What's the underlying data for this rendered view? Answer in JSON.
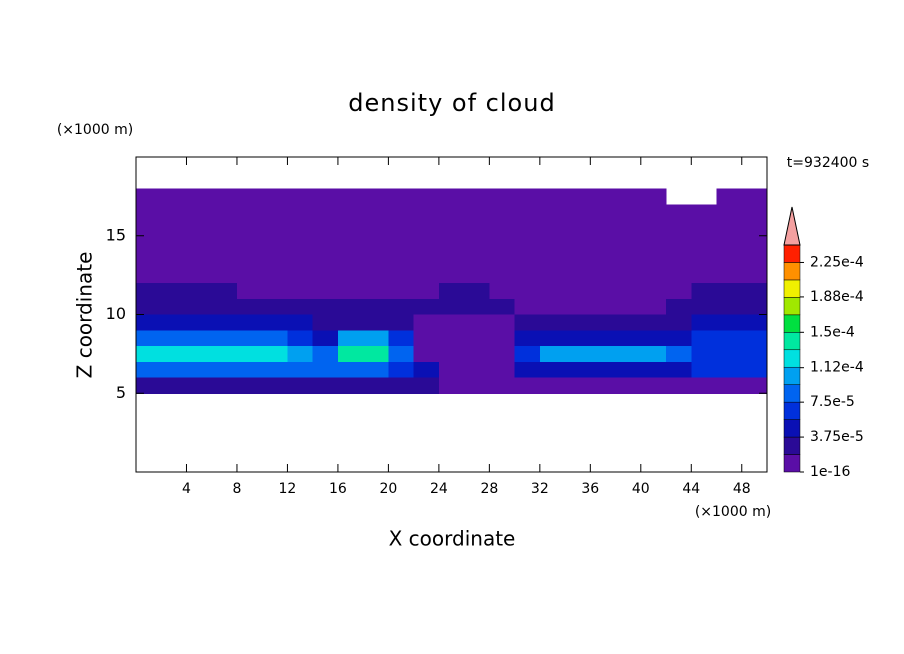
{
  "chart_data": {
    "type": "contour",
    "title": "density of cloud",
    "x_label": "X coordinate",
    "y_label": "Z coordinate",
    "x_unit": "(×1000 m)",
    "y_unit": "(×1000 m)",
    "time_label": "t=932400 s",
    "xlim": [
      0,
      50
    ],
    "ylim": [
      0,
      20
    ],
    "xticks": [
      4,
      8,
      12,
      16,
      20,
      24,
      28,
      32,
      36,
      40,
      44,
      48
    ],
    "yticks": [
      5,
      10,
      15
    ],
    "x": [
      1,
      3,
      5,
      7,
      9,
      11,
      13,
      15,
      17,
      19,
      21,
      23,
      25,
      27,
      29,
      31,
      33,
      35,
      37,
      39,
      41,
      43,
      45,
      47,
      49
    ],
    "y": [
      17.5,
      16.5,
      15.5,
      14.5,
      13.5,
      12.5,
      11.5,
      10.5,
      9.5,
      8.5,
      7.5,
      6.5,
      5.5
    ],
    "z": [
      [
        1e-06,
        1e-06,
        1e-06,
        1e-06,
        1e-06,
        1e-06,
        1e-06,
        1e-06,
        1e-06,
        1e-06,
        1e-06,
        1e-06,
        1e-06,
        1e-06,
        1e-06,
        1e-06,
        1e-06,
        1e-06,
        1e-06,
        1e-06,
        1e-06,
        null,
        null,
        1e-06,
        1e-06
      ],
      [
        1e-06,
        1e-06,
        1e-06,
        1e-06,
        1e-06,
        1e-06,
        1e-06,
        1e-06,
        1e-06,
        1e-06,
        1e-06,
        1e-06,
        1e-06,
        1e-06,
        1e-06,
        1e-06,
        1e-06,
        1e-06,
        1e-06,
        1e-06,
        1e-06,
        1e-06,
        1e-06,
        1e-06,
        1e-06
      ],
      [
        1e-06,
        1e-06,
        1e-06,
        1e-06,
        1e-06,
        1e-06,
        1e-06,
        1e-06,
        1e-06,
        1e-06,
        1e-06,
        1e-06,
        1e-06,
        1e-06,
        1e-06,
        1e-06,
        1e-06,
        1e-06,
        1e-06,
        1e-06,
        1e-06,
        1e-06,
        1e-06,
        1e-06,
        1e-06
      ],
      [
        1e-06,
        1e-06,
        1e-06,
        1e-06,
        1e-06,
        1e-06,
        1e-06,
        1e-06,
        1e-06,
        1e-06,
        1e-06,
        1e-06,
        1e-06,
        1e-06,
        1e-06,
        1e-06,
        1e-06,
        1e-06,
        1e-06,
        1e-06,
        1e-06,
        1e-06,
        1e-06,
        1e-06,
        1e-06
      ],
      [
        1e-06,
        1e-06,
        1e-06,
        1e-06,
        1e-06,
        1e-06,
        1e-06,
        1e-06,
        1e-06,
        1e-06,
        1e-06,
        1e-06,
        1e-06,
        1e-06,
        1e-06,
        1e-06,
        1e-06,
        1e-06,
        1e-06,
        1e-06,
        1e-06,
        1e-06,
        1e-06,
        1e-06,
        1e-06
      ],
      [
        1e-06,
        1e-06,
        1e-06,
        1e-06,
        1e-06,
        1e-06,
        1e-06,
        1e-06,
        1e-06,
        1e-06,
        1e-06,
        1e-06,
        1e-06,
        1e-06,
        1e-06,
        1e-06,
        1e-06,
        1e-06,
        1e-06,
        1e-06,
        1e-06,
        1e-06,
        1e-06,
        1e-06,
        1e-06
      ],
      [
        3e-05,
        3e-05,
        3e-05,
        3e-05,
        1e-06,
        1e-06,
        1e-06,
        1e-06,
        1e-06,
        1e-06,
        1e-06,
        1e-06,
        3e-05,
        3e-05,
        1e-06,
        1e-06,
        1e-06,
        1e-06,
        1e-06,
        1e-06,
        1e-06,
        1e-06,
        3e-05,
        3e-05,
        3e-05
      ],
      [
        3e-05,
        3e-05,
        3e-05,
        3e-05,
        3e-05,
        3e-05,
        3e-05,
        3e-05,
        3e-05,
        3e-05,
        3e-05,
        3e-05,
        3e-05,
        3e-05,
        3e-05,
        1e-06,
        1e-06,
        1e-06,
        1e-06,
        1e-06,
        1e-06,
        3e-05,
        3e-05,
        3e-05,
        3e-05
      ],
      [
        5e-05,
        5e-05,
        5e-05,
        5e-05,
        5e-05,
        5e-05,
        5e-05,
        3e-05,
        3e-05,
        3e-05,
        3e-05,
        1e-06,
        1e-06,
        1e-06,
        1e-06,
        3e-05,
        3e-05,
        3e-05,
        3e-05,
        3e-05,
        3e-05,
        3e-05,
        5e-05,
        5e-05,
        5e-05
      ],
      [
        9e-05,
        9e-05,
        9e-05,
        9e-05,
        9e-05,
        9e-05,
        6e-05,
        5e-05,
        0.00011,
        0.00011,
        6e-05,
        1e-06,
        1e-06,
        1e-06,
        1e-06,
        5e-05,
        5e-05,
        5e-05,
        5e-05,
        5e-05,
        5e-05,
        5e-05,
        7e-05,
        7e-05,
        7e-05
      ],
      [
        0.00012,
        0.00012,
        0.00012,
        0.00013,
        0.00013,
        0.00012,
        0.0001,
        9e-05,
        0.00014,
        0.00015,
        9e-05,
        1e-06,
        1e-06,
        1e-06,
        1e-06,
        6e-05,
        0.0001,
        0.0001,
        0.0001,
        0.0001,
        0.0001,
        8e-05,
        6e-05,
        6e-05,
        6e-05
      ],
      [
        8e-05,
        8e-05,
        8e-05,
        8e-05,
        8e-05,
        8e-05,
        8e-05,
        8e-05,
        8e-05,
        8e-05,
        6e-05,
        4e-05,
        1e-06,
        1e-06,
        1e-06,
        5e-05,
        5e-05,
        5e-05,
        5e-05,
        5e-05,
        5e-05,
        5e-05,
        6e-05,
        6e-05,
        6e-05
      ],
      [
        3e-05,
        3e-05,
        3e-05,
        3e-05,
        3e-05,
        3e-05,
        3e-05,
        3e-05,
        3e-05,
        3e-05,
        3e-05,
        3e-05,
        1e-06,
        1e-06,
        1e-06,
        1e-06,
        1e-06,
        1e-06,
        1e-06,
        1e-06,
        1e-06,
        1e-06,
        1e-06,
        1e-06,
        1e-06
      ]
    ],
    "colorbar": {
      "clim": [
        1e-16,
        0.00024375
      ],
      "colors": [
        "#5a0ea6",
        "#2a0a96",
        "#0a10b4",
        "#0030dc",
        "#0064f0",
        "#00a0f0",
        "#00e0e0",
        "#00e8a0",
        "#00e040",
        "#a0e800",
        "#f0f000",
        "#ff9000",
        "#ff2000"
      ],
      "over_color": "#f4a0a0",
      "ticks": [
        {
          "value": 1e-16,
          "label": "1e-16"
        },
        {
          "value": 3.75e-05,
          "label": "3.75e-5"
        },
        {
          "value": 7.5e-05,
          "label": "7.5e-5"
        },
        {
          "value": 0.000112,
          "label": "1.12e-4"
        },
        {
          "value": 0.00015,
          "label": "1.5e-4"
        },
        {
          "value": 0.000188,
          "label": "1.88e-4"
        },
        {
          "value": 0.000225,
          "label": "2.25e-4"
        }
      ]
    }
  }
}
